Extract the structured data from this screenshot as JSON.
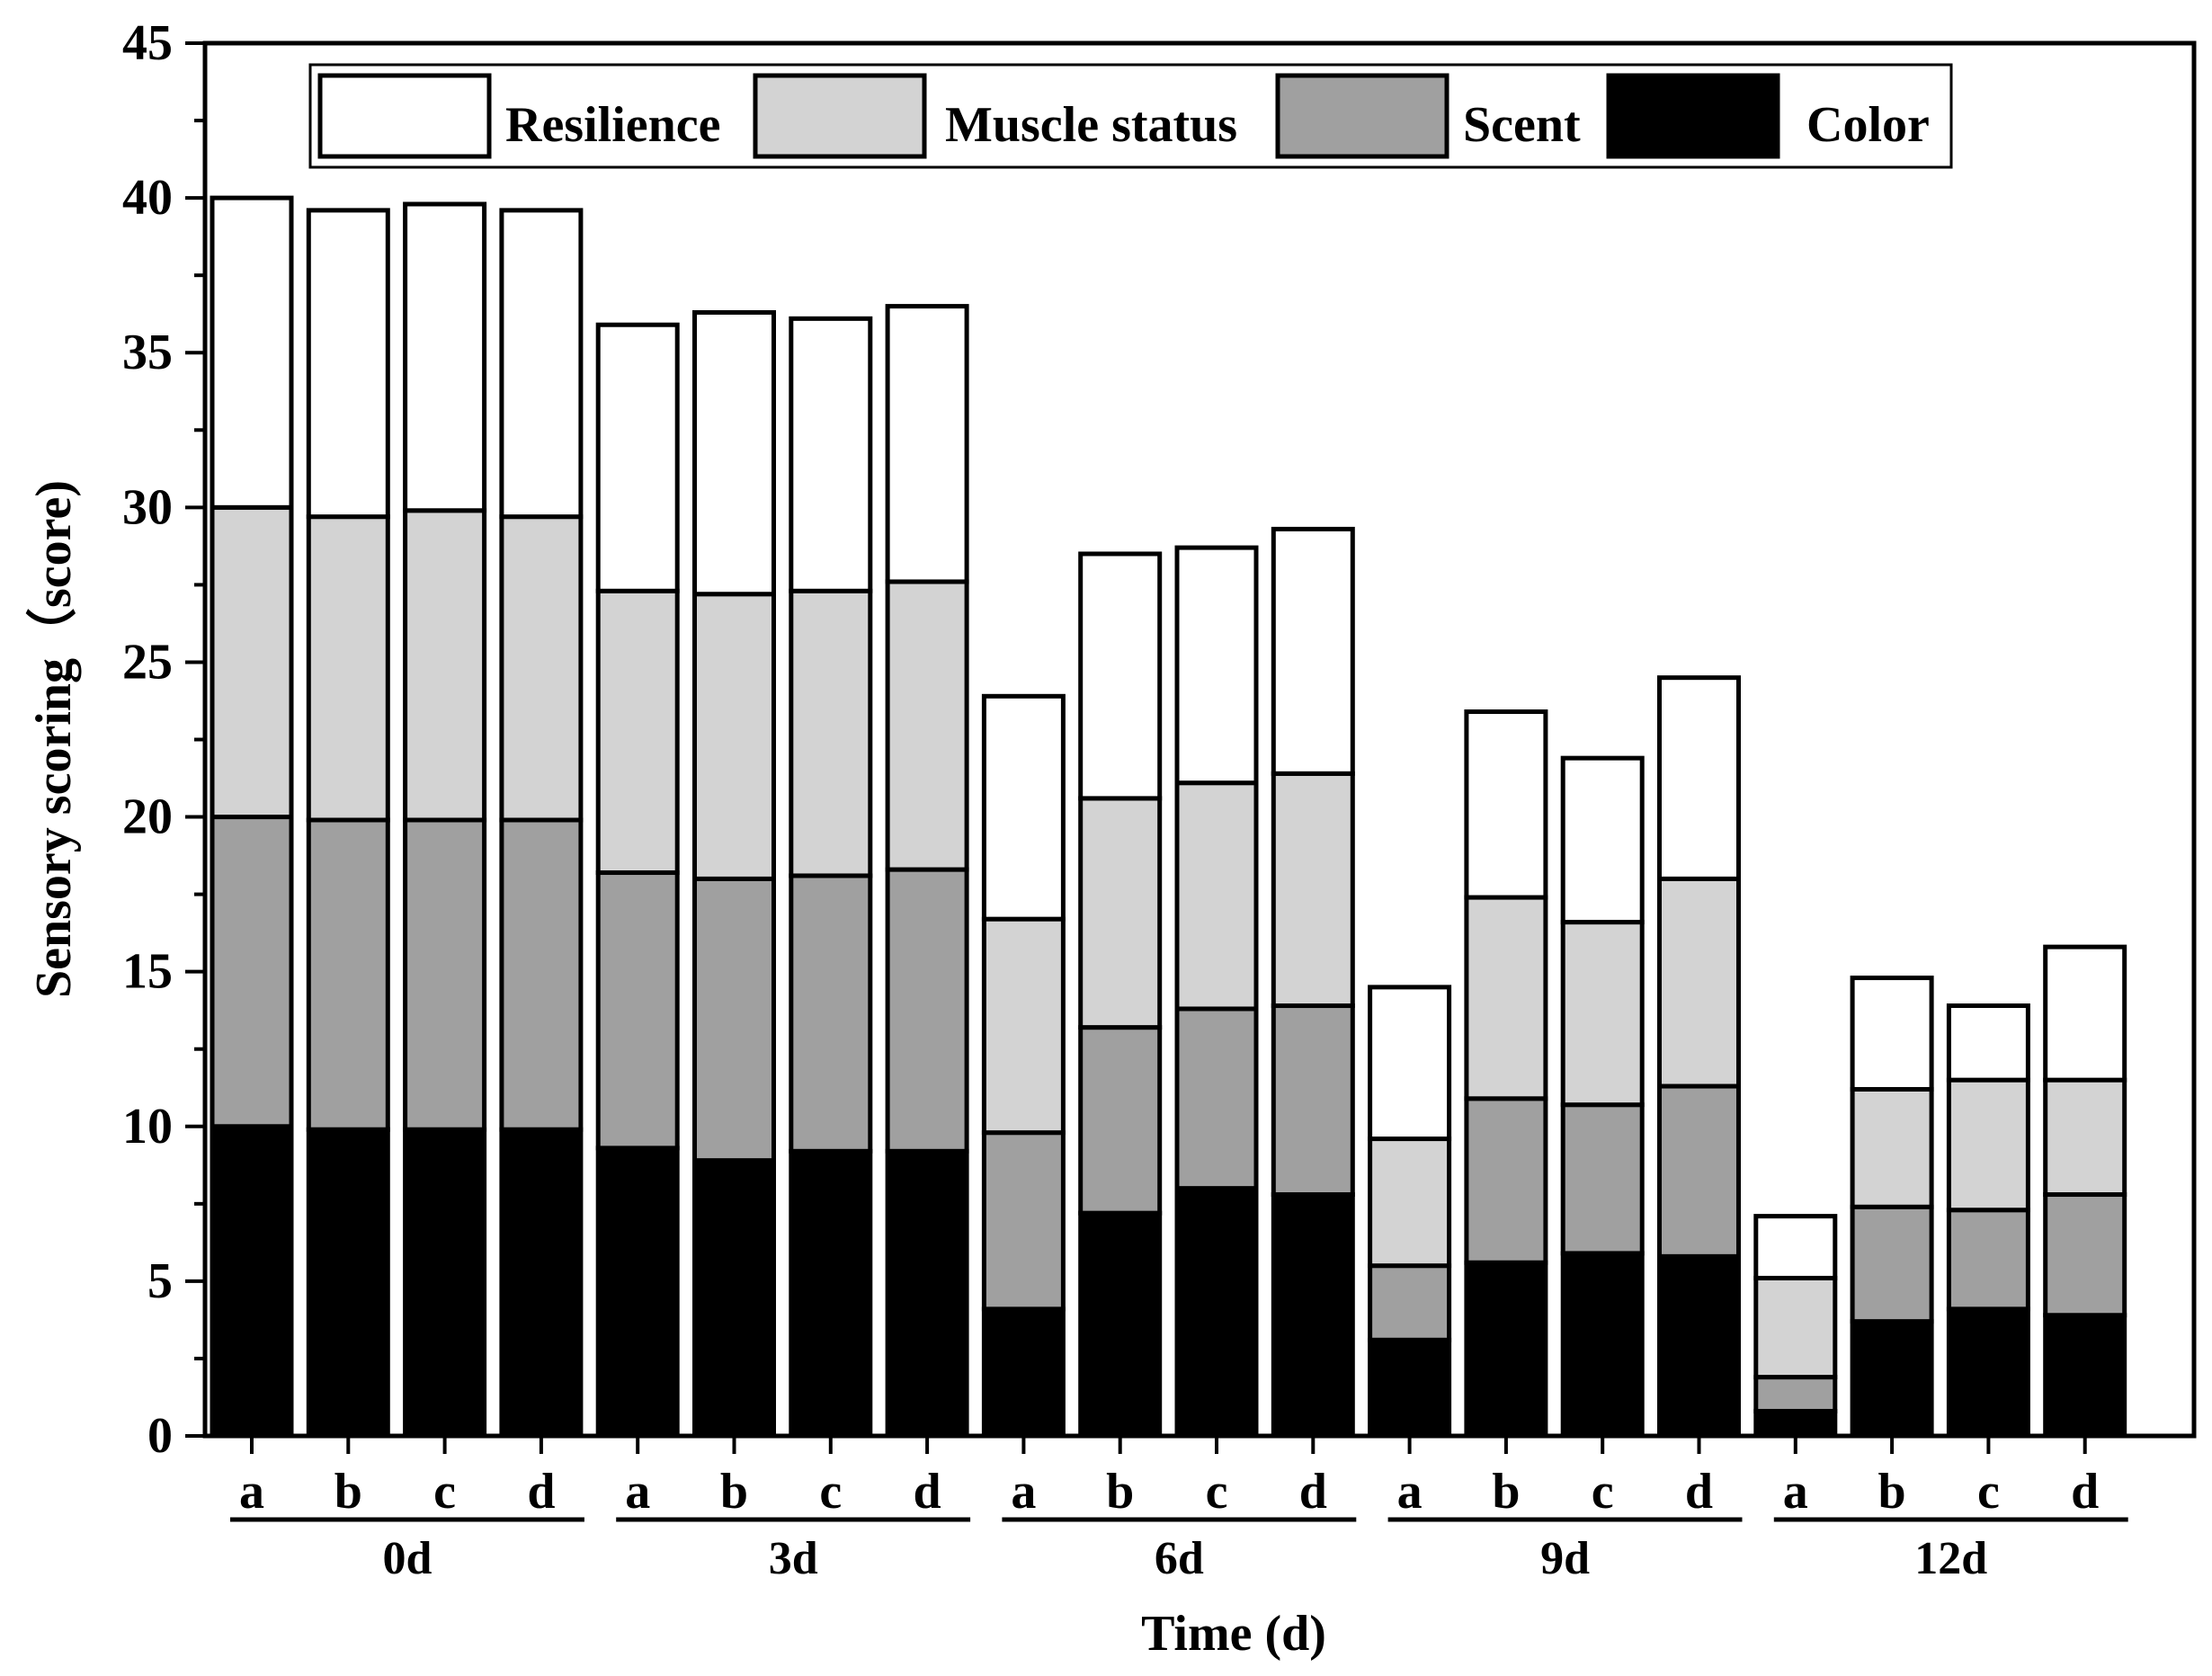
{
  "chart_data": {
    "type": "bar",
    "stacked": true,
    "title": "",
    "xlabel": "Time (d)",
    "ylabel": "Sensory scoring（score)",
    "ylim": [
      0,
      45
    ],
    "yticks": [
      0,
      5,
      10,
      15,
      20,
      25,
      30,
      35,
      40,
      45
    ],
    "groups": [
      {
        "label": "0d",
        "categories": [
          "a",
          "b",
          "c",
          "d"
        ]
      },
      {
        "label": "3d",
        "categories": [
          "a",
          "b",
          "c",
          "d"
        ]
      },
      {
        "label": "6d",
        "categories": [
          "a",
          "b",
          "c",
          "d"
        ]
      },
      {
        "label": "9d",
        "categories": [
          "a",
          "b",
          "c",
          "d"
        ]
      },
      {
        "label": "12d",
        "categories": [
          "a",
          "b",
          "c",
          "d"
        ]
      }
    ],
    "series": [
      {
        "name": "Color",
        "color": "#000000",
        "values": [
          10.0,
          9.9,
          9.9,
          9.9,
          9.3,
          8.9,
          9.2,
          9.2,
          4.1,
          7.2,
          8.0,
          7.8,
          3.1,
          5.6,
          5.9,
          5.8,
          0.8,
          3.7,
          4.1,
          3.9
        ]
      },
      {
        "name": "Scent",
        "color": "#a0a0a0",
        "values": [
          10.0,
          10.0,
          10.0,
          10.0,
          8.9,
          9.1,
          8.9,
          9.1,
          5.7,
          6.0,
          5.8,
          6.1,
          2.4,
          5.3,
          4.8,
          5.5,
          1.1,
          3.7,
          3.2,
          3.9
        ]
      },
      {
        "name": "Muscle status",
        "color": "#d3d3d3",
        "values": [
          10.0,
          9.8,
          10.0,
          9.8,
          9.1,
          9.2,
          9.2,
          9.3,
          6.9,
          7.4,
          7.3,
          7.5,
          4.1,
          6.5,
          5.9,
          6.7,
          3.2,
          3.8,
          4.2,
          3.7
        ]
      },
      {
        "name": "Resilience",
        "color": "#ffffff",
        "values": [
          10.0,
          9.9,
          9.9,
          9.9,
          8.6,
          9.1,
          8.8,
          8.9,
          7.2,
          7.9,
          7.6,
          7.9,
          4.9,
          6.0,
          5.3,
          6.5,
          2.0,
          3.6,
          2.4,
          4.3
        ]
      }
    ],
    "legend": {
      "placement": "top",
      "order": [
        "Resilience",
        "Muscle status",
        "Scent",
        "Color"
      ]
    }
  }
}
